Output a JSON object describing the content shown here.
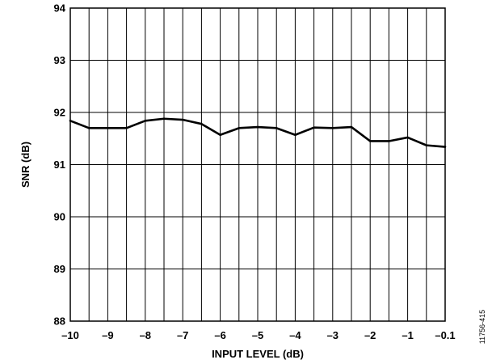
{
  "chart_data": {
    "type": "line",
    "title": "",
    "xlabel": "INPUT LEVEL (dB)",
    "ylabel": "SNR (dB)",
    "xlim": [
      -10,
      -0.1
    ],
    "ylim": [
      88,
      94
    ],
    "grid": true,
    "legend": "none",
    "x_tick_labels": [
      "–10",
      "–9",
      "–8",
      "–7",
      "–6",
      "–5",
      "–4",
      "–3",
      "–2",
      "–1",
      "–0.1"
    ],
    "y_tick_labels": [
      "88",
      "89",
      "90",
      "91",
      "92",
      "93",
      "94"
    ],
    "x": [
      -10,
      -9.5,
      -9,
      -8.5,
      -8,
      -7.5,
      -7,
      -6.5,
      -6,
      -5.5,
      -5,
      -4.5,
      -4,
      -3.5,
      -3,
      -2.5,
      -2,
      -1.5,
      -1,
      -0.55,
      -0.1
    ],
    "series": [
      {
        "values": [
          91.84,
          91.7,
          91.7,
          91.7,
          91.84,
          91.88,
          91.86,
          91.78,
          91.57,
          91.7,
          91.72,
          91.7,
          91.57,
          91.71,
          91.7,
          91.72,
          91.45,
          91.45,
          91.52,
          91.37,
          91.34
        ],
        "color": "#000000"
      }
    ]
  },
  "figure_id": "11756-415"
}
